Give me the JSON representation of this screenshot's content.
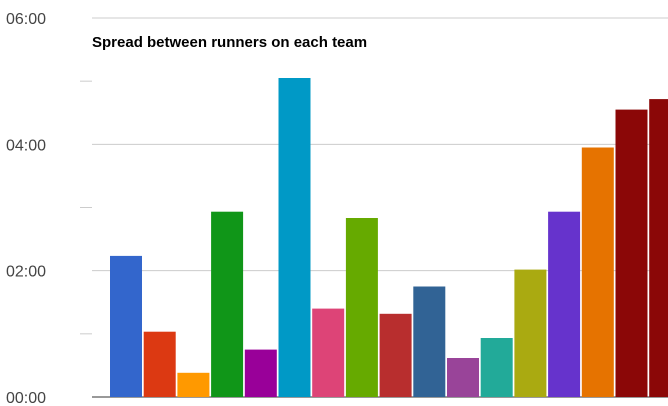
{
  "chart_data": {
    "type": "bar",
    "title": "Spread between runners on each team",
    "xlabel": "",
    "ylabel": "",
    "ylim": [
      0,
      360
    ],
    "yticks": [
      {
        "value": 0,
        "label": "00:00"
      },
      {
        "value": 120,
        "label": "02:00"
      },
      {
        "value": 240,
        "label": "04:00"
      },
      {
        "value": 360,
        "label": "06:00"
      }
    ],
    "minor_yticks": [
      60,
      180,
      300
    ],
    "grid": true,
    "legend": "none",
    "categories": [
      "",
      "",
      "",
      "",
      "",
      "",
      "",
      "",
      "",
      "",
      "",
      "",
      "",
      "",
      "",
      "",
      ""
    ],
    "values": [
      134,
      62,
      23,
      176,
      45,
      303,
      84,
      170,
      79,
      105,
      37,
      56,
      121,
      176,
      237,
      273,
      283
    ],
    "colors": [
      "#3366cc",
      "#dc3912",
      "#ff9900",
      "#109618",
      "#990099",
      "#0099c6",
      "#dd4477",
      "#66aa00",
      "#b82e2e",
      "#316395",
      "#994499",
      "#22aa99",
      "#aaaa11",
      "#6633cc",
      "#e67300",
      "#8b0707",
      "#8b0707"
    ]
  }
}
